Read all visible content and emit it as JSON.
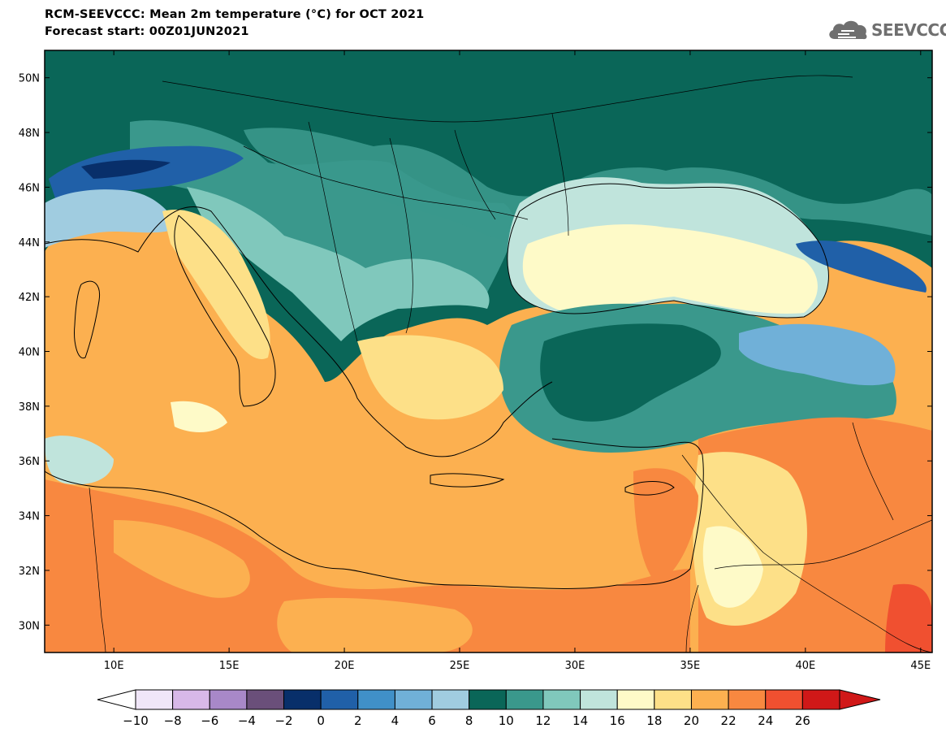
{
  "header": {
    "title": "RCM-SEEVCCC: Mean 2m temperature (°C) for OCT 2021",
    "subtitle": "Forecast start: 00Z01JUN2021"
  },
  "logo": {
    "text": "SEEVCCC",
    "icon": "cloud-icon"
  },
  "map": {
    "lon_ticks": [
      "10E",
      "15E",
      "20E",
      "25E",
      "30E",
      "35E",
      "40E",
      "45E"
    ],
    "lat_ticks": [
      "50N",
      "48N",
      "46N",
      "44N",
      "42N",
      "40N",
      "38N",
      "36N",
      "34N",
      "32N",
      "30N"
    ],
    "lon_range": [
      7,
      45.5
    ],
    "lat_range": [
      29,
      51
    ]
  },
  "colorbar": {
    "labels": [
      "−10",
      "−8",
      "−6",
      "−4",
      "−2",
      "0",
      "2",
      "4",
      "6",
      "8",
      "10",
      "12",
      "14",
      "16",
      "18",
      "20",
      "22",
      "24",
      "26"
    ],
    "colors": [
      "#f0e6f8",
      "#d8b8e8",
      "#a888c8",
      "#6a4f7a",
      "#082f6a",
      "#2060a8",
      "#4090c8",
      "#70b0d8",
      "#a0cce0",
      "#0a6658",
      "#3a988c",
      "#80c8bc",
      "#c0e4dc",
      "#fefac8",
      "#fde088",
      "#fcb050",
      "#f88840",
      "#f05030",
      "#d01818"
    ],
    "under_color": "#ffffff",
    "over_color": "#d01818"
  }
}
